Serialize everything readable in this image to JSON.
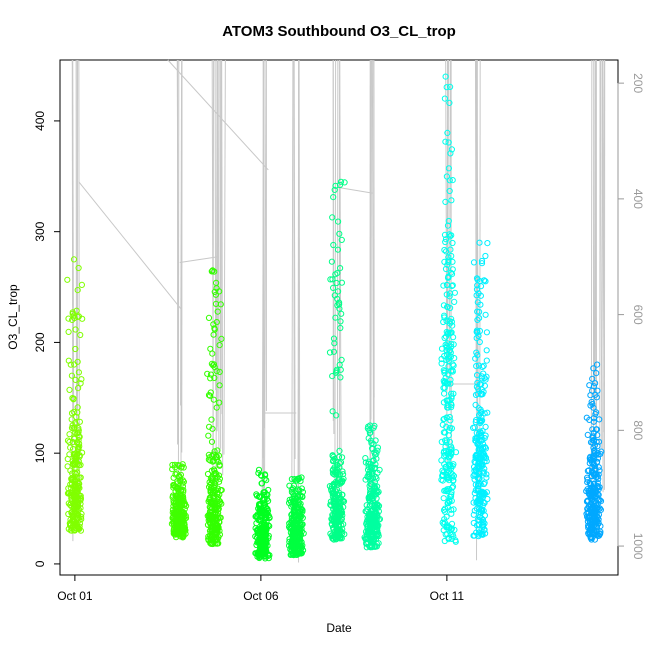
{
  "chart_data": {
    "type": "scatter",
    "title": "ATOM3 Southbound O3_CL_trop",
    "xlabel": "Date",
    "ylabel": "O3_CL_trop",
    "x_ticks": [
      "Oct 01",
      "Oct 06",
      "Oct 11"
    ],
    "x_tick_days": [
      1,
      6,
      11
    ],
    "xlim": [
      0.6,
      15.6
    ],
    "ylim": [
      -10,
      455
    ],
    "y_ticks": [
      0,
      100,
      200,
      300,
      400
    ],
    "right_axis": {
      "label": "",
      "ticks": [
        200,
        400,
        600,
        800,
        1000
      ],
      "lim": [
        1050,
        160
      ],
      "color": "#9a9a9a"
    },
    "grid": false,
    "point_style": "open-circle",
    "series": [
      {
        "day": 1.0,
        "y_min": 30,
        "y_max": 275,
        "dense_max": 150,
        "color": "#80ff00"
      },
      {
        "day": 3.8,
        "y_min": 24,
        "y_max": 90,
        "dense_max": 80,
        "color": "#40ff00"
      },
      {
        "day": 4.75,
        "y_min": 18,
        "y_max": 265,
        "dense_max": 110,
        "color": "#33ff00"
      },
      {
        "day": 6.05,
        "y_min": 5,
        "y_max": 85,
        "dense_max": 70,
        "color": "#00ff20"
      },
      {
        "day": 6.95,
        "y_min": 8,
        "y_max": 78,
        "dense_max": 72,
        "color": "#00ff40"
      },
      {
        "day": 8.05,
        "y_min": 22,
        "y_max": 345,
        "dense_max": 110,
        "color": "#00ff88"
      },
      {
        "day": 9.0,
        "y_min": 15,
        "y_max": 125,
        "dense_max": 100,
        "color": "#00ffa0"
      },
      {
        "day": 11.05,
        "y_min": 20,
        "y_max": 440,
        "dense_max": 320,
        "color": "#00ffee"
      },
      {
        "day": 11.9,
        "y_min": 25,
        "y_max": 290,
        "dense_max": 230,
        "color": "#00f0ff"
      },
      {
        "day": 14.95,
        "y_min": 22,
        "y_max": 180,
        "dense_max": 140,
        "color": "#00a8ff"
      }
    ],
    "altitude_line": {
      "color": "#c8c8c8",
      "profiles": [
        {
          "day": 1.0,
          "top": 160
        },
        {
          "day": 3.8,
          "top": 160
        },
        {
          "day": 4.75,
          "top": 160
        },
        {
          "day": 4.95,
          "top": 160
        },
        {
          "day": 6.05,
          "top": 160
        },
        {
          "day": 6.95,
          "top": 160
        },
        {
          "day": 8.05,
          "top": 160
        },
        {
          "day": 9.0,
          "top": 160
        },
        {
          "day": 11.05,
          "top": 160
        },
        {
          "day": 11.85,
          "top": 160
        },
        {
          "day": 14.95,
          "top": 160
        },
        {
          "day": 15.15,
          "top": 160
        }
      ],
      "connectors": [
        {
          "from": [
            1.1,
            370
          ],
          "to": [
            3.85,
            590
          ]
        },
        {
          "from": [
            3.5,
            160
          ],
          "to": [
            6.2,
            350
          ]
        },
        {
          "from": [
            3.82,
            510
          ],
          "to": [
            4.85,
            500
          ]
        },
        {
          "from": [
            6.1,
            770
          ],
          "to": [
            6.95,
            770
          ]
        },
        {
          "from": [
            8.05,
            380
          ],
          "to": [
            9.0,
            390
          ]
        },
        {
          "from": [
            11.1,
            720
          ],
          "to": [
            11.9,
            720
          ]
        }
      ]
    }
  }
}
